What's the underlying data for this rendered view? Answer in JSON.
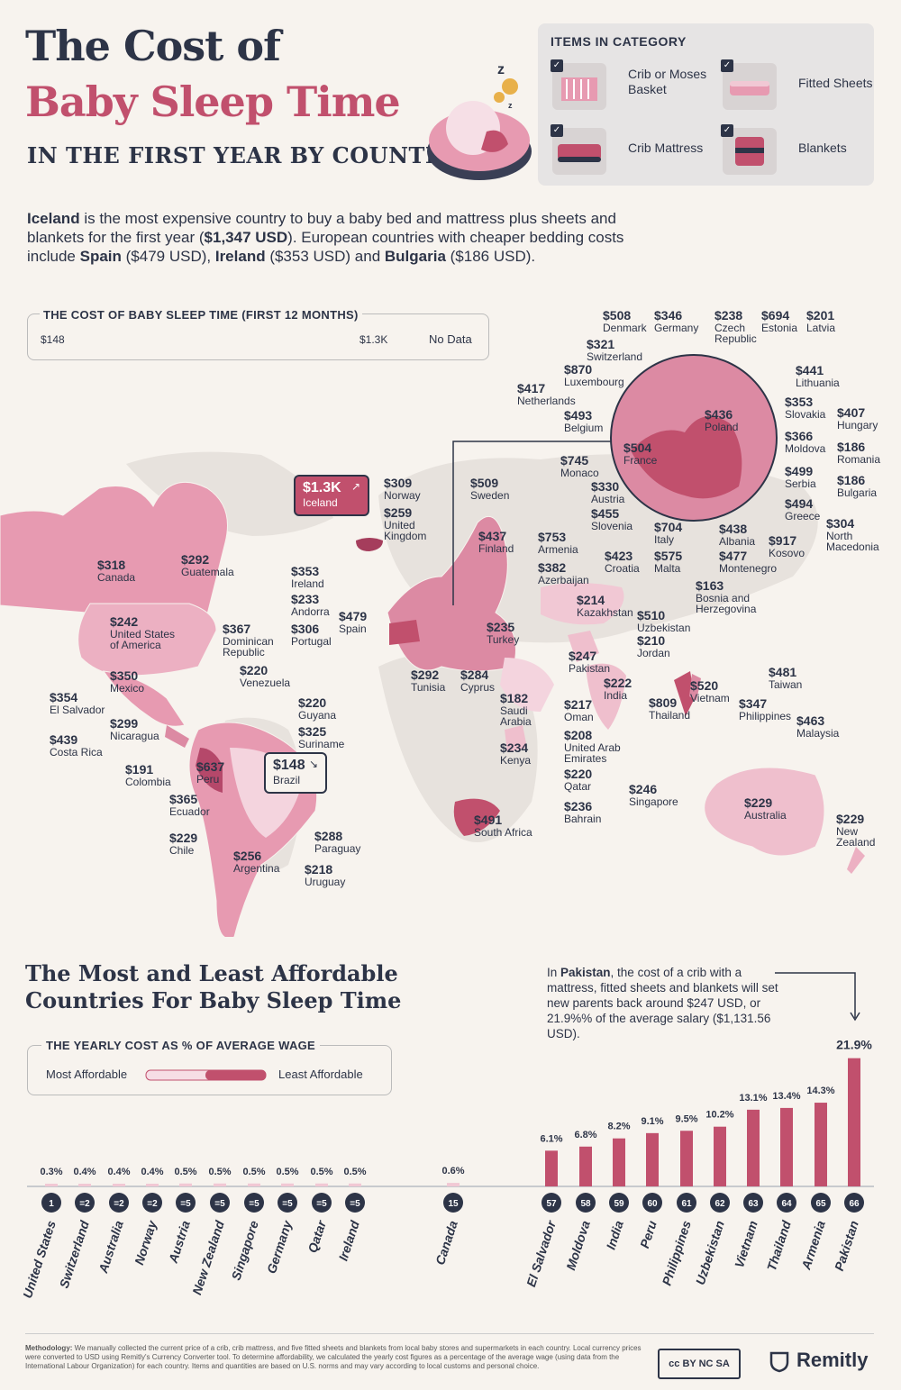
{
  "header": {
    "title_line1": "The Cost of",
    "title_line2": "Baby Sleep Time",
    "subtitle": "IN THE FIRST YEAR BY COUNTRY"
  },
  "categories": {
    "title": "ITEMS IN CATEGORY",
    "items": [
      "Crib or Moses Basket",
      "Fitted Sheets",
      "Crib Mattress",
      "Blankets"
    ]
  },
  "intro": {
    "p1": "Iceland",
    "p2": " is the most expensive country to buy a baby bed and mattress plus sheets and blankets for the first year (",
    "p3": "$1,347 USD",
    "p4": "). European countries with cheaper bedding costs include ",
    "p5": "Spain",
    "p6": " ($479 USD), ",
    "p7": "Ireland",
    "p8": " ($353 USD) and ",
    "p9": "Bulgaria",
    "p10": " ($186 USD)."
  },
  "map_legend": {
    "title": "THE COST OF BABY SLEEP TIME (FIRST 12 MONTHS)",
    "min": "$148",
    "max": "$1.3K",
    "no_data": "No Data"
  },
  "map_highlights": {
    "max_value": "$1.3K",
    "max_country": "Iceland",
    "min_value": "$148",
    "min_country": "Brazil"
  },
  "colors": {
    "dark": "#2d3447",
    "accent": "#c1506d",
    "light_pink": "#f1c8d4",
    "mid_pink": "#dc8aa3",
    "bar": "#c1506d",
    "no_data": "#e4e0dc"
  },
  "map_labels": [
    {
      "value": "$508",
      "name": "Denmark"
    },
    {
      "value": "$346",
      "name": "Germany"
    },
    {
      "value": "$238",
      "name": "Czech\nRepublic"
    },
    {
      "value": "$694",
      "name": "Estonia"
    },
    {
      "value": "$201",
      "name": "Latvia"
    },
    {
      "value": "$321",
      "name": "Switzerland"
    },
    {
      "value": "$870",
      "name": "Luxembourg"
    },
    {
      "value": "$417",
      "name": "Netherlands"
    },
    {
      "value": "$441",
      "name": "Lithuania"
    },
    {
      "value": "$493",
      "name": "Belgium"
    },
    {
      "value": "$436",
      "name": "Poland"
    },
    {
      "value": "$353",
      "name": "Slovakia"
    },
    {
      "value": "$407",
      "name": "Hungary"
    },
    {
      "value": "$504",
      "name": "France"
    },
    {
      "value": "$366",
      "name": "Moldova"
    },
    {
      "value": "$186",
      "name": "Romania"
    },
    {
      "value": "$745",
      "name": "Monaco"
    },
    {
      "value": "$499",
      "name": "Serbia"
    },
    {
      "value": "$186",
      "name": "Bulgaria"
    },
    {
      "value": "$330",
      "name": "Austria"
    },
    {
      "value": "$494",
      "name": "Greece"
    },
    {
      "value": "$455",
      "name": "Slovenia"
    },
    {
      "value": "$704",
      "name": "Italy"
    },
    {
      "value": "$438",
      "name": "Albania"
    },
    {
      "value": "$917",
      "name": "Kosovo"
    },
    {
      "value": "$304",
      "name": "North\nMacedonia"
    },
    {
      "value": "$423",
      "name": "Croatia"
    },
    {
      "value": "$575",
      "name": "Malta"
    },
    {
      "value": "$477",
      "name": "Montenegro"
    },
    {
      "value": "$163",
      "name": "Bosnia and\nHerzegovina"
    },
    {
      "value": "$309",
      "name": "Norway"
    },
    {
      "value": "$509",
      "name": "Sweden"
    },
    {
      "value": "$259",
      "name": "United\nKingdom"
    },
    {
      "value": "$437",
      "name": "Finland"
    },
    {
      "value": "$753",
      "name": "Armenia"
    },
    {
      "value": "$382",
      "name": "Azerbaijan"
    },
    {
      "value": "$353",
      "name": "Ireland"
    },
    {
      "value": "$233",
      "name": "Andorra"
    },
    {
      "value": "$479",
      "name": "Spain"
    },
    {
      "value": "$306",
      "name": "Portugal"
    },
    {
      "value": "$214",
      "name": "Kazakhstan"
    },
    {
      "value": "$510",
      "name": "Uzbekistan"
    },
    {
      "value": "$235",
      "name": "Turkey"
    },
    {
      "value": "$210",
      "name": "Jordan"
    },
    {
      "value": "$247",
      "name": "Pakistan"
    },
    {
      "value": "$292",
      "name": "Tunisia"
    },
    {
      "value": "$284",
      "name": "Cyprus"
    },
    {
      "value": "$222",
      "name": "India"
    },
    {
      "value": "$520",
      "name": "Vietnam"
    },
    {
      "value": "$481",
      "name": "Taiwan"
    },
    {
      "value": "$182",
      "name": "Saudi\nArabia"
    },
    {
      "value": "$217",
      "name": "Oman"
    },
    {
      "value": "$809",
      "name": "Thailand"
    },
    {
      "value": "$347",
      "name": "Philippines"
    },
    {
      "value": "$208",
      "name": "United Arab\nEmirates"
    },
    {
      "value": "$463",
      "name": "Malaysia"
    },
    {
      "value": "$234",
      "name": "Kenya"
    },
    {
      "value": "$220",
      "name": "Qatar"
    },
    {
      "value": "$246",
      "name": "Singapore"
    },
    {
      "value": "$236",
      "name": "Bahrain"
    },
    {
      "value": "$229",
      "name": "Australia"
    },
    {
      "value": "$491",
      "name": "South Africa"
    },
    {
      "value": "$229",
      "name": "New\nZealand"
    },
    {
      "value": "$318",
      "name": "Canada"
    },
    {
      "value": "$292",
      "name": "Guatemala"
    },
    {
      "value": "$242",
      "name": "United States\nof America"
    },
    {
      "value": "$367",
      "name": "Dominican\nRepublic"
    },
    {
      "value": "$350",
      "name": "Mexico"
    },
    {
      "value": "$220",
      "name": "Venezuela"
    },
    {
      "value": "$354",
      "name": "El Salvador"
    },
    {
      "value": "$299",
      "name": "Nicaragua"
    },
    {
      "value": "$220",
      "name": "Guyana"
    },
    {
      "value": "$325",
      "name": "Suriname"
    },
    {
      "value": "$439",
      "name": "Costa Rica"
    },
    {
      "value": "$191",
      "name": "Colombia"
    },
    {
      "value": "$637",
      "name": "Peru"
    },
    {
      "value": "$365",
      "name": "Ecuador"
    },
    {
      "value": "$229",
      "name": "Chile"
    },
    {
      "value": "$256",
      "name": "Argentina"
    },
    {
      "value": "$288",
      "name": "Paraguay"
    },
    {
      "value": "$218",
      "name": "Uruguay"
    }
  ],
  "section2": {
    "title": "The Most and Least Affordable Countries For Baby Sleep Time",
    "legend_title": "THE YEARLY COST AS % OF AVERAGE WAGE",
    "legend_low": "Most Affordable",
    "legend_high": "Least Affordable",
    "note_pre": "In ",
    "note_country": "Pakistan",
    "note_post": ", the cost of a crib with a mattress, fitted sheets and blankets will set new parents back around $247 USD, or 21.9%% of the average salary ($1,131.56 USD)."
  },
  "chart_data": {
    "type": "bar",
    "title": "THE YEARLY COST AS % OF AVERAGE WAGE",
    "categories": [
      "United States",
      "Switzerland",
      "Australia",
      "Norway",
      "Austria",
      "New Zealand",
      "Singapore",
      "Germany",
      "Qatar",
      "Ireland",
      "Canada",
      "El Salvador",
      "Moldova",
      "India",
      "Peru",
      "Philippines",
      "Uzbekistan",
      "Vietnam",
      "Thailand",
      "Armenia",
      "Pakistan"
    ],
    "ranks": [
      "1",
      "=2",
      "=2",
      "=2",
      "=5",
      "=5",
      "=5",
      "=5",
      "=5",
      "=5",
      "15",
      "57",
      "58",
      "59",
      "60",
      "61",
      "62",
      "63",
      "64",
      "65",
      "66"
    ],
    "values": [
      0.3,
      0.4,
      0.4,
      0.4,
      0.5,
      0.5,
      0.5,
      0.5,
      0.5,
      0.5,
      0.6,
      6.1,
      6.8,
      8.2,
      9.1,
      9.5,
      10.2,
      13.1,
      13.4,
      14.3,
      21.9
    ],
    "value_labels": [
      "0.3%",
      "0.4%",
      "0.4%",
      "0.4%",
      "0.5%",
      "0.5%",
      "0.5%",
      "0.5%",
      "0.5%",
      "0.5%",
      "0.6%",
      "6.1%",
      "6.8%",
      "8.2%",
      "9.1%",
      "9.5%",
      "10.2%",
      "13.1%",
      "13.4%",
      "14.3%",
      "21.9%"
    ],
    "ylim": [
      0,
      22
    ]
  },
  "footer": {
    "methodology_label": "Methodology:",
    "methodology": " We manually collected the current price of a crib, crib mattress, and five fitted sheets and blankets from local baby stores and supermarkets in each country. Local currency prices were converted to USD using Remitly's Currency Converter tool. To determine affordability, we calculated the yearly cost figures as a percentage of the average wage (using data from the International Labour Organization) for each country. Items and quantities are based on U.S. norms and may vary according to local customs and personal choice.",
    "license": "cc BY NC SA",
    "brand": "Remitly"
  }
}
